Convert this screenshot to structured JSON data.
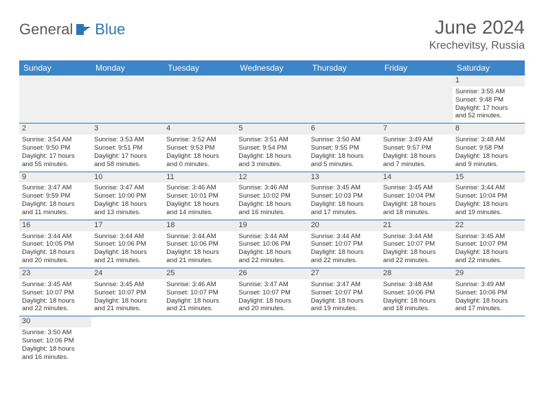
{
  "logo": {
    "general": "General",
    "blue": "Blue",
    "icon_color": "#2e75b6"
  },
  "title": "June 2024",
  "location": "Krechevitsy, Russia",
  "header_bg": "#3d85c6",
  "header_fg": "#ffffff",
  "divider_color": "#2e75b6",
  "shaded_bg": "#eeeeee",
  "daynames": [
    "Sunday",
    "Monday",
    "Tuesday",
    "Wednesday",
    "Thursday",
    "Friday",
    "Saturday"
  ],
  "weeks": [
    [
      null,
      null,
      null,
      null,
      null,
      null,
      {
        "d": "1",
        "sr": "Sunrise: 3:55 AM",
        "ss": "Sunset: 9:48 PM",
        "dl1": "Daylight: 17 hours",
        "dl2": "and 52 minutes."
      }
    ],
    [
      {
        "d": "2",
        "sr": "Sunrise: 3:54 AM",
        "ss": "Sunset: 9:50 PM",
        "dl1": "Daylight: 17 hours",
        "dl2": "and 55 minutes."
      },
      {
        "d": "3",
        "sr": "Sunrise: 3:53 AM",
        "ss": "Sunset: 9:51 PM",
        "dl1": "Daylight: 17 hours",
        "dl2": "and 58 minutes."
      },
      {
        "d": "4",
        "sr": "Sunrise: 3:52 AM",
        "ss": "Sunset: 9:53 PM",
        "dl1": "Daylight: 18 hours",
        "dl2": "and 0 minutes."
      },
      {
        "d": "5",
        "sr": "Sunrise: 3:51 AM",
        "ss": "Sunset: 9:54 PM",
        "dl1": "Daylight: 18 hours",
        "dl2": "and 3 minutes."
      },
      {
        "d": "6",
        "sr": "Sunrise: 3:50 AM",
        "ss": "Sunset: 9:55 PM",
        "dl1": "Daylight: 18 hours",
        "dl2": "and 5 minutes."
      },
      {
        "d": "7",
        "sr": "Sunrise: 3:49 AM",
        "ss": "Sunset: 9:57 PM",
        "dl1": "Daylight: 18 hours",
        "dl2": "and 7 minutes."
      },
      {
        "d": "8",
        "sr": "Sunrise: 3:48 AM",
        "ss": "Sunset: 9:58 PM",
        "dl1": "Daylight: 18 hours",
        "dl2": "and 9 minutes."
      }
    ],
    [
      {
        "d": "9",
        "sr": "Sunrise: 3:47 AM",
        "ss": "Sunset: 9:59 PM",
        "dl1": "Daylight: 18 hours",
        "dl2": "and 11 minutes."
      },
      {
        "d": "10",
        "sr": "Sunrise: 3:47 AM",
        "ss": "Sunset: 10:00 PM",
        "dl1": "Daylight: 18 hours",
        "dl2": "and 13 minutes."
      },
      {
        "d": "11",
        "sr": "Sunrise: 3:46 AM",
        "ss": "Sunset: 10:01 PM",
        "dl1": "Daylight: 18 hours",
        "dl2": "and 14 minutes."
      },
      {
        "d": "12",
        "sr": "Sunrise: 3:46 AM",
        "ss": "Sunset: 10:02 PM",
        "dl1": "Daylight: 18 hours",
        "dl2": "and 16 minutes."
      },
      {
        "d": "13",
        "sr": "Sunrise: 3:45 AM",
        "ss": "Sunset: 10:03 PM",
        "dl1": "Daylight: 18 hours",
        "dl2": "and 17 minutes."
      },
      {
        "d": "14",
        "sr": "Sunrise: 3:45 AM",
        "ss": "Sunset: 10:04 PM",
        "dl1": "Daylight: 18 hours",
        "dl2": "and 18 minutes."
      },
      {
        "d": "15",
        "sr": "Sunrise: 3:44 AM",
        "ss": "Sunset: 10:04 PM",
        "dl1": "Daylight: 18 hours",
        "dl2": "and 19 minutes."
      }
    ],
    [
      {
        "d": "16",
        "sr": "Sunrise: 3:44 AM",
        "ss": "Sunset: 10:05 PM",
        "dl1": "Daylight: 18 hours",
        "dl2": "and 20 minutes."
      },
      {
        "d": "17",
        "sr": "Sunrise: 3:44 AM",
        "ss": "Sunset: 10:06 PM",
        "dl1": "Daylight: 18 hours",
        "dl2": "and 21 minutes."
      },
      {
        "d": "18",
        "sr": "Sunrise: 3:44 AM",
        "ss": "Sunset: 10:06 PM",
        "dl1": "Daylight: 18 hours",
        "dl2": "and 21 minutes."
      },
      {
        "d": "19",
        "sr": "Sunrise: 3:44 AM",
        "ss": "Sunset: 10:06 PM",
        "dl1": "Daylight: 18 hours",
        "dl2": "and 22 minutes."
      },
      {
        "d": "20",
        "sr": "Sunrise: 3:44 AM",
        "ss": "Sunset: 10:07 PM",
        "dl1": "Daylight: 18 hours",
        "dl2": "and 22 minutes."
      },
      {
        "d": "21",
        "sr": "Sunrise: 3:44 AM",
        "ss": "Sunset: 10:07 PM",
        "dl1": "Daylight: 18 hours",
        "dl2": "and 22 minutes."
      },
      {
        "d": "22",
        "sr": "Sunrise: 3:45 AM",
        "ss": "Sunset: 10:07 PM",
        "dl1": "Daylight: 18 hours",
        "dl2": "and 22 minutes."
      }
    ],
    [
      {
        "d": "23",
        "sr": "Sunrise: 3:45 AM",
        "ss": "Sunset: 10:07 PM",
        "dl1": "Daylight: 18 hours",
        "dl2": "and 22 minutes."
      },
      {
        "d": "24",
        "sr": "Sunrise: 3:45 AM",
        "ss": "Sunset: 10:07 PM",
        "dl1": "Daylight: 18 hours",
        "dl2": "and 21 minutes."
      },
      {
        "d": "25",
        "sr": "Sunrise: 3:46 AM",
        "ss": "Sunset: 10:07 PM",
        "dl1": "Daylight: 18 hours",
        "dl2": "and 21 minutes."
      },
      {
        "d": "26",
        "sr": "Sunrise: 3:47 AM",
        "ss": "Sunset: 10:07 PM",
        "dl1": "Daylight: 18 hours",
        "dl2": "and 20 minutes."
      },
      {
        "d": "27",
        "sr": "Sunrise: 3:47 AM",
        "ss": "Sunset: 10:07 PM",
        "dl1": "Daylight: 18 hours",
        "dl2": "and 19 minutes."
      },
      {
        "d": "28",
        "sr": "Sunrise: 3:48 AM",
        "ss": "Sunset: 10:06 PM",
        "dl1": "Daylight: 18 hours",
        "dl2": "and 18 minutes."
      },
      {
        "d": "29",
        "sr": "Sunrise: 3:49 AM",
        "ss": "Sunset: 10:06 PM",
        "dl1": "Daylight: 18 hours",
        "dl2": "and 17 minutes."
      }
    ],
    [
      {
        "d": "30",
        "sr": "Sunrise: 3:50 AM",
        "ss": "Sunset: 10:06 PM",
        "dl1": "Daylight: 18 hours",
        "dl2": "and 16 minutes."
      },
      null,
      null,
      null,
      null,
      null,
      null
    ]
  ]
}
